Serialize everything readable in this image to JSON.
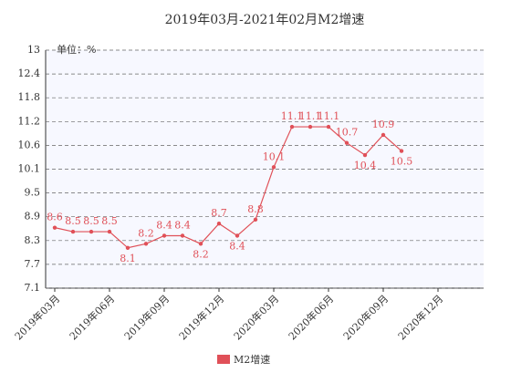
{
  "chart_data": {
    "type": "line",
    "title": "2019年03月-2021年02月M2增速",
    "y_label": "单位：%",
    "categories": [
      "2019年03月",
      null,
      null,
      "2019年06月",
      null,
      null,
      "2019年09月",
      null,
      null,
      "2019年12月",
      null,
      null,
      "2020年03月",
      null,
      null,
      "2020年06月",
      null,
      null,
      "2020年09月",
      null,
      null,
      "2020年12月",
      null,
      null
    ],
    "series": [
      {
        "name": "M2增速",
        "color": "#e05058",
        "values": [
          8.6,
          8.5,
          8.5,
          8.5,
          8.1,
          8.2,
          8.4,
          8.4,
          8.2,
          8.7,
          8.4,
          8.8,
          10.1,
          11.1,
          11.1,
          11.1,
          10.7,
          10.4,
          10.9,
          10.5,
          null,
          null,
          null,
          null
        ]
      }
    ],
    "ylim": [
      7.1,
      13
    ],
    "yticks": [
      7.1,
      {
        "value": 7.69,
        "label": "7.7"
      },
      {
        "value": 8.28,
        "label": "8.3"
      },
      {
        "value": 8.87,
        "label": "8.9"
      },
      {
        "value": 9.46,
        "label": "9.5"
      },
      {
        "value": 10.05,
        "label": "10.1"
      },
      {
        "value": 10.64,
        "label": "10.6"
      },
      {
        "value": 11.23,
        "label": "11.2"
      },
      {
        "value": 11.82,
        "label": "11.8"
      },
      {
        "value": 12.41,
        "label": "12.4"
      },
      13
    ],
    "grid": true,
    "legend": "bottom"
  }
}
